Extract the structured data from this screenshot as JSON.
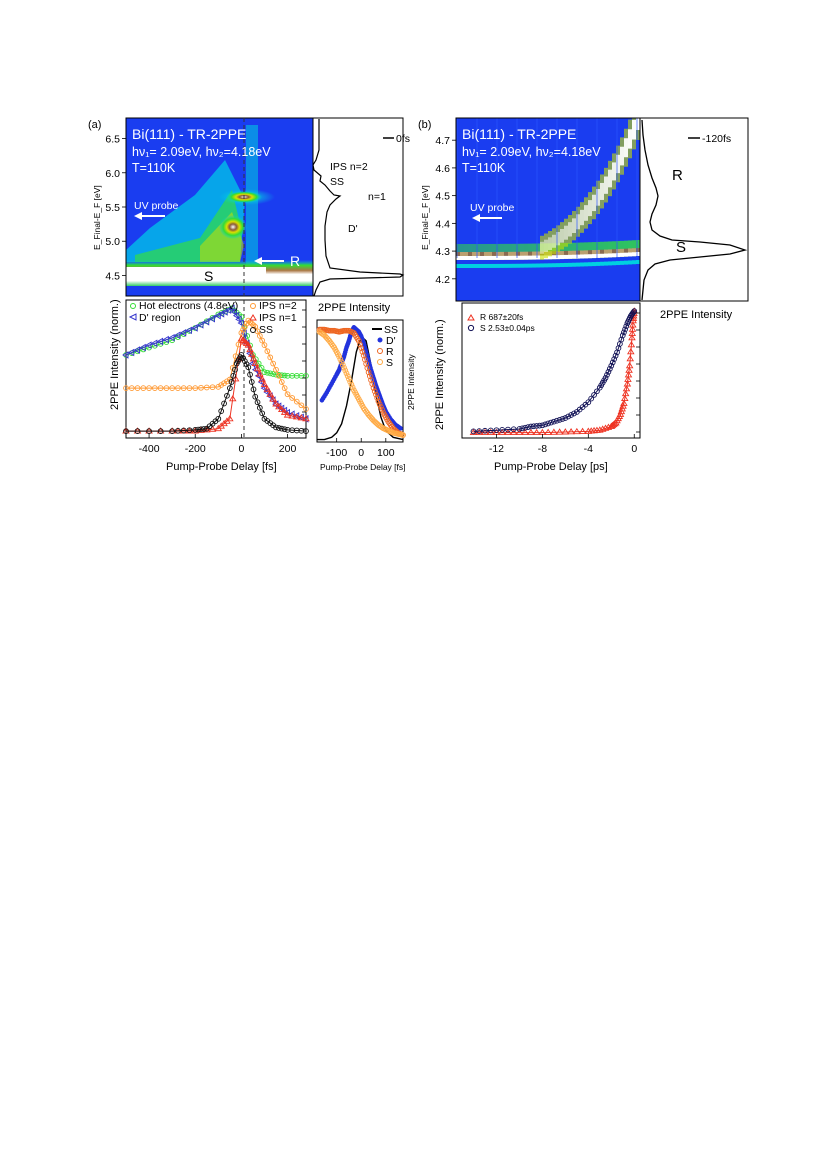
{
  "chart_data": [
    {
      "id": "a-map",
      "type": "heatmap",
      "panel_label": "(a)",
      "title_lines": [
        "Bi(111) - TR-2PPE",
        "hν₁= 2.09eV, hν₂=4.18eV",
        "T=110K"
      ],
      "ylabel": "E_Final-E_F [eV]",
      "ylim": [
        4.2,
        6.8
      ],
      "xlim": [
        -500,
        280
      ],
      "yticks": [
        "4.5",
        "5.0",
        "5.5",
        "6.0",
        "6.5"
      ],
      "annotations": [
        "UV probe",
        "S",
        "R"
      ]
    },
    {
      "id": "a-spectrum",
      "type": "line",
      "legend": "0fs",
      "xlabel": "2PPE Intensity",
      "labels": [
        "IPS n=2",
        "SS",
        "n=1",
        "D'"
      ]
    },
    {
      "id": "a-traces",
      "type": "scatter",
      "xlabel": "Pump-Probe Delay [fs]",
      "ylabel": "2PPE Intensity (norm.)",
      "xlim": [
        -500,
        280
      ],
      "xticks": [
        "-400",
        "-200",
        "0",
        "200"
      ],
      "series": [
        {
          "name": "Hot electrons (4.8eV)",
          "color": "#33dd33",
          "marker": "circle",
          "peak": -40,
          "x": [
            -500,
            -400,
            -300,
            -200,
            -100,
            -40,
            0,
            50,
            100,
            150,
            200,
            280
          ],
          "y": [
            0.62,
            0.68,
            0.74,
            0.84,
            0.95,
            1.0,
            0.93,
            0.62,
            0.48,
            0.46,
            0.45,
            0.45
          ]
        },
        {
          "name": "D' region",
          "color": "#3333cc",
          "marker": "triangle-left",
          "x": [
            -500,
            -400,
            -300,
            -200,
            -100,
            -40,
            0,
            50,
            100,
            150,
            200,
            280
          ],
          "y": [
            0.62,
            0.7,
            0.76,
            0.84,
            0.94,
            1.0,
            0.88,
            0.55,
            0.35,
            0.22,
            0.15,
            0.1
          ]
        },
        {
          "name": "IPS n=2",
          "color": "#ff9933",
          "marker": "circle",
          "x": [
            -500,
            -400,
            -300,
            -200,
            -100,
            -50,
            0,
            30,
            60,
            100,
            150,
            200,
            280
          ],
          "y": [
            0.35,
            0.35,
            0.35,
            0.35,
            0.36,
            0.42,
            0.8,
            0.9,
            0.85,
            0.7,
            0.5,
            0.3,
            0.18
          ]
        },
        {
          "name": "IPS n=1",
          "color": "#ee3322",
          "marker": "triangle-up",
          "x": [
            -500,
            -300,
            -200,
            -100,
            -50,
            0,
            30,
            60,
            100,
            150,
            200,
            280
          ],
          "y": [
            0.0,
            0.0,
            0.0,
            0.02,
            0.1,
            0.75,
            0.7,
            0.55,
            0.38,
            0.22,
            0.13,
            0.1
          ]
        },
        {
          "name": "SS",
          "color": "#111111",
          "marker": "circle",
          "x": [
            -500,
            -300,
            -200,
            -150,
            -100,
            -50,
            -20,
            0,
            30,
            60,
            100,
            150,
            200,
            280
          ],
          "y": [
            0.0,
            0.0,
            0.01,
            0.02,
            0.1,
            0.35,
            0.55,
            0.62,
            0.52,
            0.28,
            0.1,
            0.03,
            0.01,
            0.0
          ]
        }
      ]
    },
    {
      "id": "a-zoom",
      "type": "scatter",
      "xlabel": "Pump-Probe Delay [fs]",
      "ylabel": "2PPE Intensity",
      "xlim": [
        -180,
        170
      ],
      "xticks": [
        "-100",
        "0",
        "100"
      ],
      "series": [
        {
          "name": "SS",
          "color": "#000000",
          "marker": "line",
          "x": [
            -180,
            -150,
            -120,
            -100,
            -80,
            -60,
            -40,
            -20,
            0,
            20,
            40,
            60,
            80,
            100,
            130,
            170
          ],
          "y": [
            0.0,
            0.0,
            0.02,
            0.06,
            0.14,
            0.3,
            0.52,
            0.78,
            0.92,
            0.88,
            0.66,
            0.4,
            0.2,
            0.08,
            0.02,
            0.0
          ]
        },
        {
          "name": "D'",
          "color": "#2233dd",
          "marker": "dot",
          "x": [
            -160,
            -140,
            -120,
            -100,
            -90,
            -80,
            -70,
            -60,
            -50,
            -40,
            -30,
            -20,
            -10,
            0,
            10,
            20,
            30,
            40,
            50,
            60,
            70,
            80,
            90,
            100,
            120,
            140,
            160
          ],
          "y": [
            0.35,
            0.42,
            0.5,
            0.58,
            0.62,
            0.68,
            0.74,
            0.82,
            0.88,
            0.96,
            1.0,
            0.98,
            0.96,
            0.92,
            0.86,
            0.78,
            0.7,
            0.62,
            0.55,
            0.48,
            0.42,
            0.36,
            0.3,
            0.25,
            0.18,
            0.13,
            0.1
          ]
        },
        {
          "name": "R",
          "color": "#ee6622",
          "marker": "circle",
          "x": [
            -170,
            -150,
            -130,
            -110,
            -90,
            -70,
            -50,
            -30,
            -10,
            10,
            30,
            50,
            70,
            90,
            110,
            130,
            150,
            170
          ],
          "y": [
            0.98,
            0.98,
            0.97,
            0.97,
            0.96,
            0.97,
            0.97,
            0.95,
            0.88,
            0.75,
            0.6,
            0.46,
            0.34,
            0.24,
            0.16,
            0.1,
            0.06,
            0.04
          ]
        },
        {
          "name": "S",
          "color": "#ffaa44",
          "marker": "circle",
          "x": [
            -170,
            -150,
            -130,
            -110,
            -90,
            -70,
            -50,
            -30,
            -10,
            10,
            30,
            50,
            70,
            90,
            110,
            130,
            150,
            170
          ],
          "y": [
            0.96,
            0.93,
            0.88,
            0.82,
            0.74,
            0.64,
            0.54,
            0.44,
            0.36,
            0.28,
            0.22,
            0.17,
            0.13,
            0.1,
            0.08,
            0.06,
            0.05,
            0.04
          ]
        }
      ]
    },
    {
      "id": "b-map",
      "type": "heatmap",
      "panel_label": "(b)",
      "title_lines": [
        "Bi(111) - TR-2PPE",
        "hν₁= 2.09eV, hν₂=4.18eV",
        "T=110K"
      ],
      "ylabel": "E_Final-E_F [eV]",
      "ylim": [
        4.12,
        4.78
      ],
      "xlim": [
        -14.5,
        0.5
      ],
      "yticks": [
        "4.2",
        "4.3",
        "4.4",
        "4.5",
        "4.6",
        "4.7"
      ],
      "annotations": [
        "UV probe"
      ]
    },
    {
      "id": "b-spectrum",
      "type": "line",
      "legend": "-120fs",
      "xlabel": "2PPE Intensity",
      "labels": [
        "R",
        "S"
      ]
    },
    {
      "id": "b-traces",
      "type": "scatter",
      "xlabel": "Pump-Probe Delay [ps]",
      "ylabel": "2PPE Intensity (norm.)",
      "xlim": [
        -15,
        0.5
      ],
      "xticks": [
        "-12",
        "-8",
        "-4",
        "0"
      ],
      "series": [
        {
          "name": "R 687±20fs",
          "color": "#ee3322",
          "marker": "triangle-up",
          "x": [
            -14,
            -12,
            -10,
            -8,
            -6,
            -4,
            -3,
            -2,
            -1.6,
            -1.2,
            -0.9,
            -0.6,
            -0.4,
            -0.2,
            -0.1,
            0
          ],
          "y": [
            0.0,
            0.0,
            0.0,
            0.0,
            0.005,
            0.01,
            0.02,
            0.05,
            0.08,
            0.15,
            0.24,
            0.4,
            0.55,
            0.78,
            0.92,
            1.0
          ]
        },
        {
          "name": "S 2.53±0.04ps",
          "color": "#111155",
          "marker": "circle",
          "x": [
            -14,
            -12,
            -10,
            -9,
            -8,
            -7,
            -6,
            -5,
            -4,
            -3,
            -2.5,
            -2,
            -1.5,
            -1,
            -0.6,
            -0.3,
            0
          ],
          "y": [
            0.01,
            0.02,
            0.03,
            0.05,
            0.06,
            0.09,
            0.12,
            0.17,
            0.25,
            0.37,
            0.45,
            0.55,
            0.66,
            0.8,
            0.9,
            0.96,
            1.0
          ]
        }
      ]
    }
  ]
}
